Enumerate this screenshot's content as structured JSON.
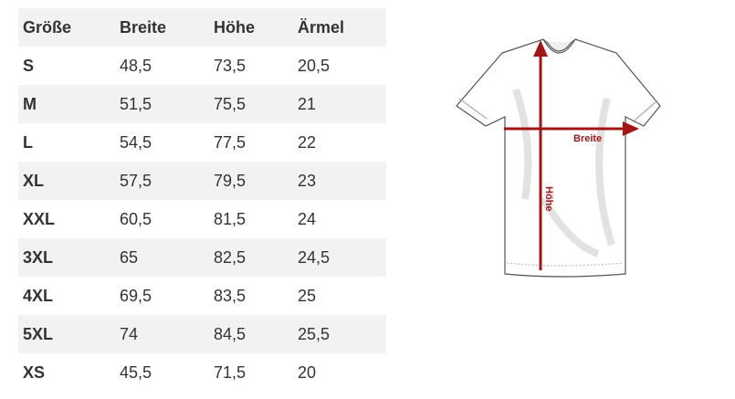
{
  "table": {
    "headers": [
      "Größe",
      "Breite",
      "Höhe",
      "Ärmel"
    ],
    "rows": [
      [
        "S",
        "48,5",
        "73,5",
        "20,5"
      ],
      [
        "M",
        "51,5",
        "75,5",
        "21"
      ],
      [
        "L",
        "54,5",
        "77,5",
        "22"
      ],
      [
        "XL",
        "57,5",
        "79,5",
        "23"
      ],
      [
        "XXL",
        "60,5",
        "81,5",
        "24"
      ],
      [
        "3XL",
        "65",
        "82,5",
        "24,5"
      ],
      [
        "4XL",
        "69,5",
        "83,5",
        "25"
      ],
      [
        "5XL",
        "74",
        "84,5",
        "25,5"
      ],
      [
        "XS",
        "45,5",
        "71,5",
        "20"
      ]
    ]
  },
  "diagram": {
    "width_label": "Breite",
    "height_label": "Höhe",
    "arrow_color": "#a31515",
    "icon": "tshirt-outline"
  }
}
